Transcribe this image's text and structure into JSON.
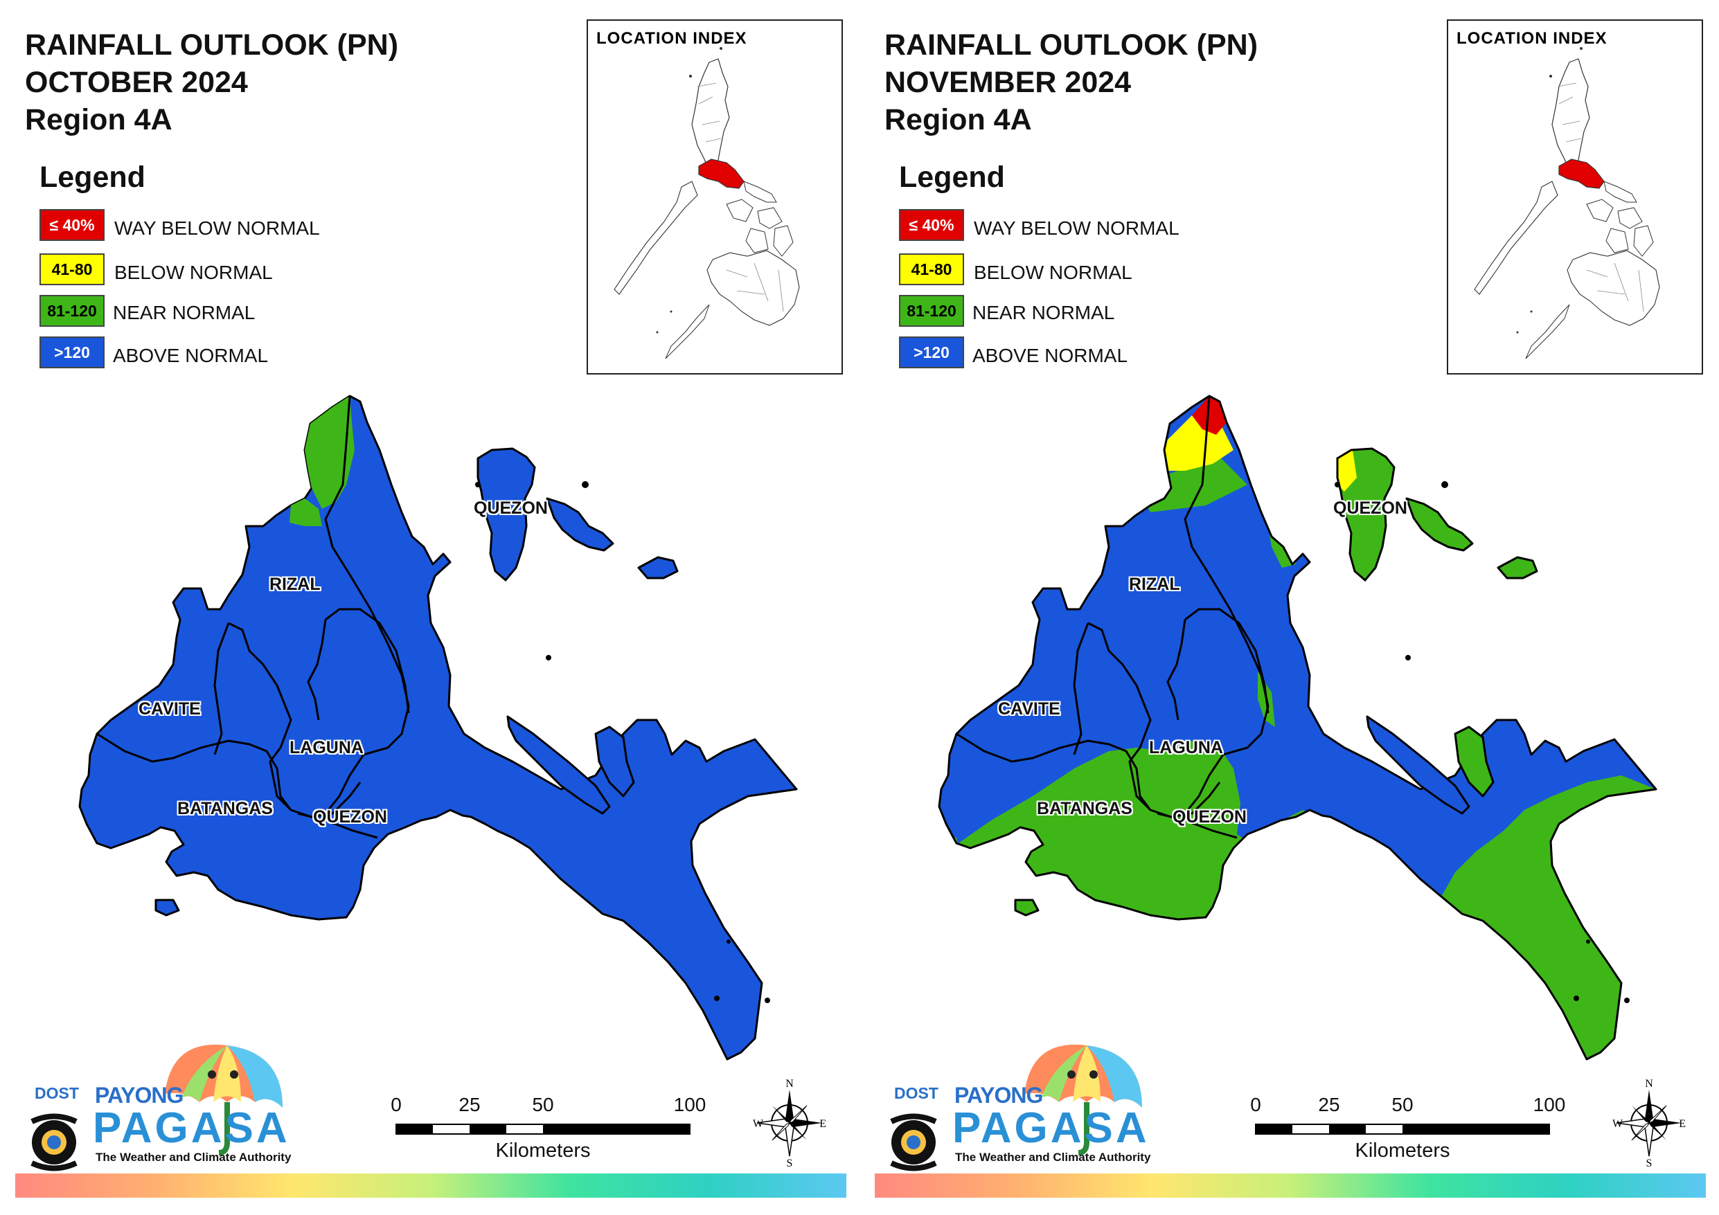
{
  "panels": [
    {
      "title_line1": "RAINFALL OUTLOOK (PN)",
      "title_line2": "OCTOBER 2024",
      "title_line3": "Region 4A"
    },
    {
      "title_line1": "RAINFALL OUTLOOK (PN)",
      "title_line2": "NOVEMBER 2024",
      "title_line3": "Region 4A"
    }
  ],
  "legend": {
    "title": "Legend",
    "items": [
      {
        "range": "≤ 40%",
        "label": "WAY BELOW NORMAL",
        "color": "#e00000"
      },
      {
        "range": "41-80",
        "label": "BELOW NORMAL",
        "color": "#ffff00"
      },
      {
        "range": "81-120",
        "label": "NEAR NORMAL",
        "color": "#3fb618"
      },
      {
        "range": ">120",
        "label": "ABOVE NORMAL",
        "color": "#1a56db"
      }
    ]
  },
  "location_index": {
    "title": "LOCATION INDEX",
    "highlight_color": "#e00000"
  },
  "provinces": {
    "quezon_north": "QUEZON",
    "rizal": "RIZAL",
    "cavite": "CAVITE",
    "laguna": "LAGUNA",
    "batangas": "BATANGAS",
    "quezon_south": "QUEZON"
  },
  "scale_bar": {
    "ticks": [
      "0",
      "25",
      "50",
      "100"
    ],
    "unit": "Kilometers"
  },
  "compass": {
    "n": "N",
    "e": "E",
    "s": "S",
    "w": "W"
  },
  "logo": {
    "dost": "DOST",
    "payong": "PAYONG",
    "pagasa": "PAGASA",
    "tagline": "The Weather and Climate Authority"
  }
}
